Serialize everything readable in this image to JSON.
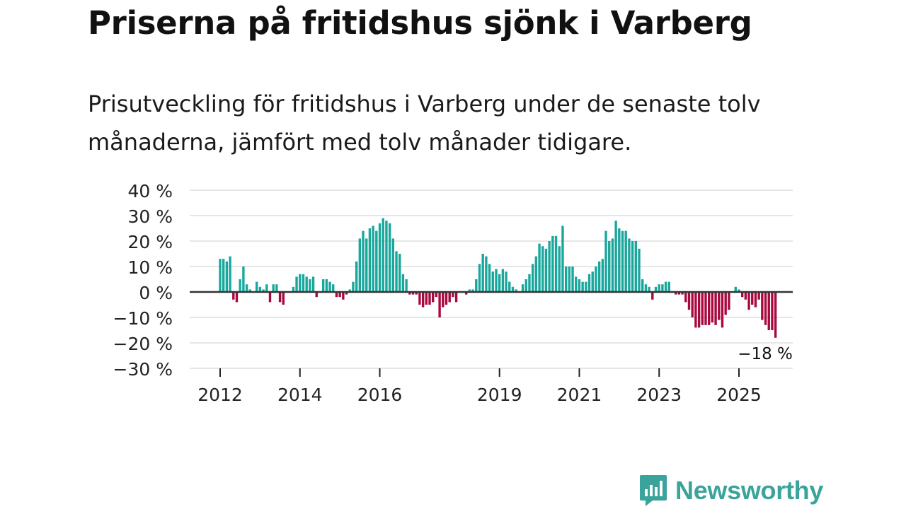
{
  "header": {
    "title": "Priserna på fritidshus sjönk i Varberg",
    "subtitle": "Prisutveckling för fritidshus i Varberg under de senaste tolv månaderna, jämfört med tolv månader tidigare."
  },
  "chart_data": {
    "type": "bar",
    "title": "Priserna på fritidshus sjönk i Varberg",
    "xlabel": "",
    "ylabel": "",
    "ylim": [
      -30,
      40
    ],
    "y_ticks": [
      40,
      30,
      20,
      10,
      0,
      -10,
      -20,
      -30
    ],
    "y_tick_labels": [
      "40 %",
      "30 %",
      "20 %",
      "10 %",
      "0 %",
      "−10 %",
      "−20 %",
      "−30 %"
    ],
    "x_start": 2011.5,
    "x_end": 2025.75,
    "x_ticks": [
      2012,
      2014,
      2016,
      2019,
      2021,
      2023,
      2025
    ],
    "x_tick_labels": [
      "2012",
      "2014",
      "2016",
      "2019",
      "2021",
      "2023",
      "2025"
    ],
    "series": [
      {
        "name": "Prisutveckling",
        "start": 2011.5,
        "step": 0.08333,
        "values": [
          null,
          null,
          null,
          null,
          null,
          null,
          13,
          13,
          12,
          14,
          -3,
          -4,
          5,
          10,
          3,
          1,
          0,
          4,
          2,
          1,
          3,
          -4,
          3,
          3,
          -4,
          -5,
          null,
          null,
          2,
          6,
          7,
          7,
          6,
          5,
          6,
          -2,
          null,
          5,
          5,
          4,
          3,
          -2,
          -2,
          -3,
          -1,
          1,
          4,
          12,
          21,
          24,
          21,
          25,
          26,
          24,
          27,
          29,
          28,
          27,
          21,
          16,
          15,
          7,
          5,
          -1,
          -1,
          -1,
          -5,
          -6,
          -5,
          -5,
          -4,
          -2,
          -10,
          -6,
          -5,
          -4,
          -2,
          -4,
          null,
          null,
          -1,
          1,
          1,
          5,
          11,
          15,
          14,
          11,
          8,
          9,
          7,
          9,
          8,
          4,
          2,
          1,
          null,
          3,
          5,
          7,
          11,
          14,
          19,
          18,
          17,
          20,
          22,
          22,
          18,
          26,
          10,
          10,
          10,
          6,
          5,
          4,
          4,
          7,
          8,
          10,
          12,
          13,
          24,
          20,
          21,
          28,
          25,
          24,
          24,
          21,
          20,
          20,
          17,
          5,
          3,
          2,
          -3,
          2,
          3,
          3,
          4,
          4,
          null,
          -1,
          -1,
          -1,
          -4,
          -7,
          -10,
          -14,
          -14,
          -13,
          -13,
          -13,
          -12,
          -13,
          -11,
          -14,
          -9,
          -7,
          null,
          2,
          1,
          -2,
          -3,
          -7,
          -5,
          -6,
          -3,
          -11,
          -13,
          -15,
          -15,
          -18
        ]
      }
    ],
    "colors": {
      "positive": "#19a79c",
      "negative": "#a8083e",
      "grid": "#dddddd",
      "zero_line": "#333333"
    },
    "annotation": {
      "label": "−18 %",
      "value": -18,
      "x": 2025.708
    }
  },
  "brand": {
    "name": "Newsworthy",
    "icon": "newsworthy-logo-icon",
    "color": "#3aa39b"
  }
}
